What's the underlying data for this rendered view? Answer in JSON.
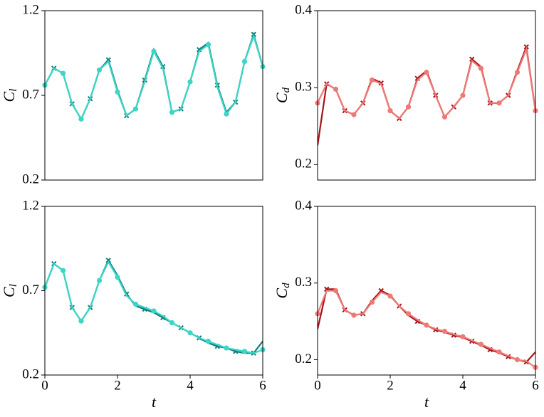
{
  "chart_data": [
    {
      "type": "line",
      "ylabel": "C",
      "ylabel_sub": "l",
      "xlim": [
        0,
        6
      ],
      "ylim": [
        0.2,
        1.2
      ],
      "yticks": [
        0.2,
        0.7,
        1.2
      ],
      "x": [
        0,
        0.25,
        0.5,
        0.75,
        1,
        1.25,
        1.5,
        1.75,
        2,
        2.25,
        2.5,
        2.75,
        3,
        3.25,
        3.5,
        3.75,
        4,
        4.25,
        4.5,
        4.75,
        5,
        5.25,
        5.5,
        5.75,
        6
      ],
      "series": [
        {
          "color": "#0f7f7c",
          "values": [
            0.76,
            0.86,
            0.83,
            0.65,
            0.56,
            0.68,
            0.85,
            0.91,
            0.73,
            0.58,
            0.62,
            0.79,
            0.97,
            0.87,
            0.6,
            0.62,
            0.78,
            0.97,
            1.01,
            0.76,
            0.6,
            0.66,
            0.9,
            1.06,
            0.87
          ]
        },
        {
          "color": "#3ad6c6",
          "values": [
            0.76,
            0.86,
            0.83,
            0.65,
            0.56,
            0.68,
            0.85,
            0.9,
            0.72,
            0.58,
            0.62,
            0.78,
            0.96,
            0.86,
            0.6,
            0.62,
            0.78,
            0.96,
            1.0,
            0.75,
            0.59,
            0.66,
            0.9,
            1.05,
            0.87
          ]
        }
      ]
    },
    {
      "type": "line",
      "ylabel": "C",
      "ylabel_sub": "d",
      "xlim": [
        0,
        6
      ],
      "ylim": [
        0.18,
        0.4
      ],
      "yticks": [
        0.2,
        0.3,
        0.4
      ],
      "x": [
        0,
        0.25,
        0.5,
        0.75,
        1,
        1.25,
        1.5,
        1.75,
        2,
        2.25,
        2.5,
        2.75,
        3,
        3.25,
        3.5,
        3.75,
        4,
        4.25,
        4.5,
        4.75,
        5,
        5.25,
        5.5,
        5.75,
        6
      ],
      "series": [
        {
          "color": "#a8121a",
          "values": [
            0.225,
            0.305,
            0.298,
            0.27,
            0.265,
            0.28,
            0.312,
            0.306,
            0.27,
            0.26,
            0.275,
            0.312,
            0.322,
            0.29,
            0.262,
            0.275,
            0.29,
            0.337,
            0.327,
            0.28,
            0.28,
            0.29,
            0.322,
            0.353,
            0.27
          ]
        },
        {
          "color": "#ee7a76",
          "values": [
            0.28,
            0.305,
            0.298,
            0.27,
            0.265,
            0.28,
            0.31,
            0.305,
            0.27,
            0.26,
            0.275,
            0.31,
            0.32,
            0.29,
            0.262,
            0.275,
            0.29,
            0.335,
            0.325,
            0.28,
            0.28,
            0.29,
            0.32,
            0.35,
            0.27
          ]
        }
      ]
    },
    {
      "type": "line",
      "ylabel": "C",
      "ylabel_sub": "l",
      "xlabel": "t",
      "xlim": [
        0,
        6
      ],
      "ylim": [
        0.2,
        1.2
      ],
      "xticks": [
        0,
        2,
        4,
        6
      ],
      "yticks": [
        0.2,
        0.7,
        1.2
      ],
      "x": [
        0,
        0.25,
        0.5,
        0.75,
        1,
        1.25,
        1.5,
        1.75,
        2,
        2.25,
        2.5,
        2.75,
        3,
        3.25,
        3.5,
        3.75,
        4,
        4.25,
        4.5,
        4.75,
        5,
        5.25,
        5.5,
        5.75,
        6
      ],
      "series": [
        {
          "color": "#0f7f7c",
          "values": [
            0.72,
            0.86,
            0.82,
            0.6,
            0.52,
            0.6,
            0.76,
            0.88,
            0.79,
            0.68,
            0.61,
            0.59,
            0.57,
            0.54,
            0.51,
            0.48,
            0.45,
            0.42,
            0.39,
            0.37,
            0.36,
            0.34,
            0.33,
            0.33,
            0.4
          ]
        },
        {
          "color": "#3ad6c6",
          "values": [
            0.72,
            0.86,
            0.82,
            0.6,
            0.52,
            0.6,
            0.76,
            0.87,
            0.78,
            0.67,
            0.62,
            0.6,
            0.58,
            0.55,
            0.51,
            0.48,
            0.45,
            0.42,
            0.4,
            0.38,
            0.36,
            0.35,
            0.34,
            0.33,
            0.35
          ]
        }
      ]
    },
    {
      "type": "line",
      "ylabel": "C",
      "ylabel_sub": "d",
      "xlabel": "t",
      "xlim": [
        0,
        6
      ],
      "ylim": [
        0.18,
        0.4
      ],
      "xticks": [
        0,
        2,
        4,
        6
      ],
      "yticks": [
        0.2,
        0.3,
        0.4
      ],
      "x": [
        0,
        0.25,
        0.5,
        0.75,
        1,
        1.25,
        1.5,
        1.75,
        2,
        2.25,
        2.5,
        2.75,
        3,
        3.25,
        3.5,
        3.75,
        4,
        4.25,
        4.5,
        4.75,
        5,
        5.25,
        5.5,
        5.75,
        6
      ],
      "series": [
        {
          "color": "#a8121a",
          "values": [
            0.24,
            0.292,
            0.292,
            0.265,
            0.258,
            0.26,
            0.277,
            0.29,
            0.284,
            0.27,
            0.258,
            0.25,
            0.245,
            0.239,
            0.236,
            0.232,
            0.229,
            0.224,
            0.219,
            0.213,
            0.209,
            0.204,
            0.2,
            0.197,
            0.21
          ]
        },
        {
          "color": "#ee7a76",
          "values": [
            0.26,
            0.29,
            0.29,
            0.265,
            0.258,
            0.26,
            0.275,
            0.288,
            0.283,
            0.27,
            0.26,
            0.252,
            0.245,
            0.24,
            0.237,
            0.233,
            0.23,
            0.225,
            0.22,
            0.215,
            0.21,
            0.205,
            0.2,
            0.198,
            0.19
          ]
        }
      ]
    }
  ]
}
